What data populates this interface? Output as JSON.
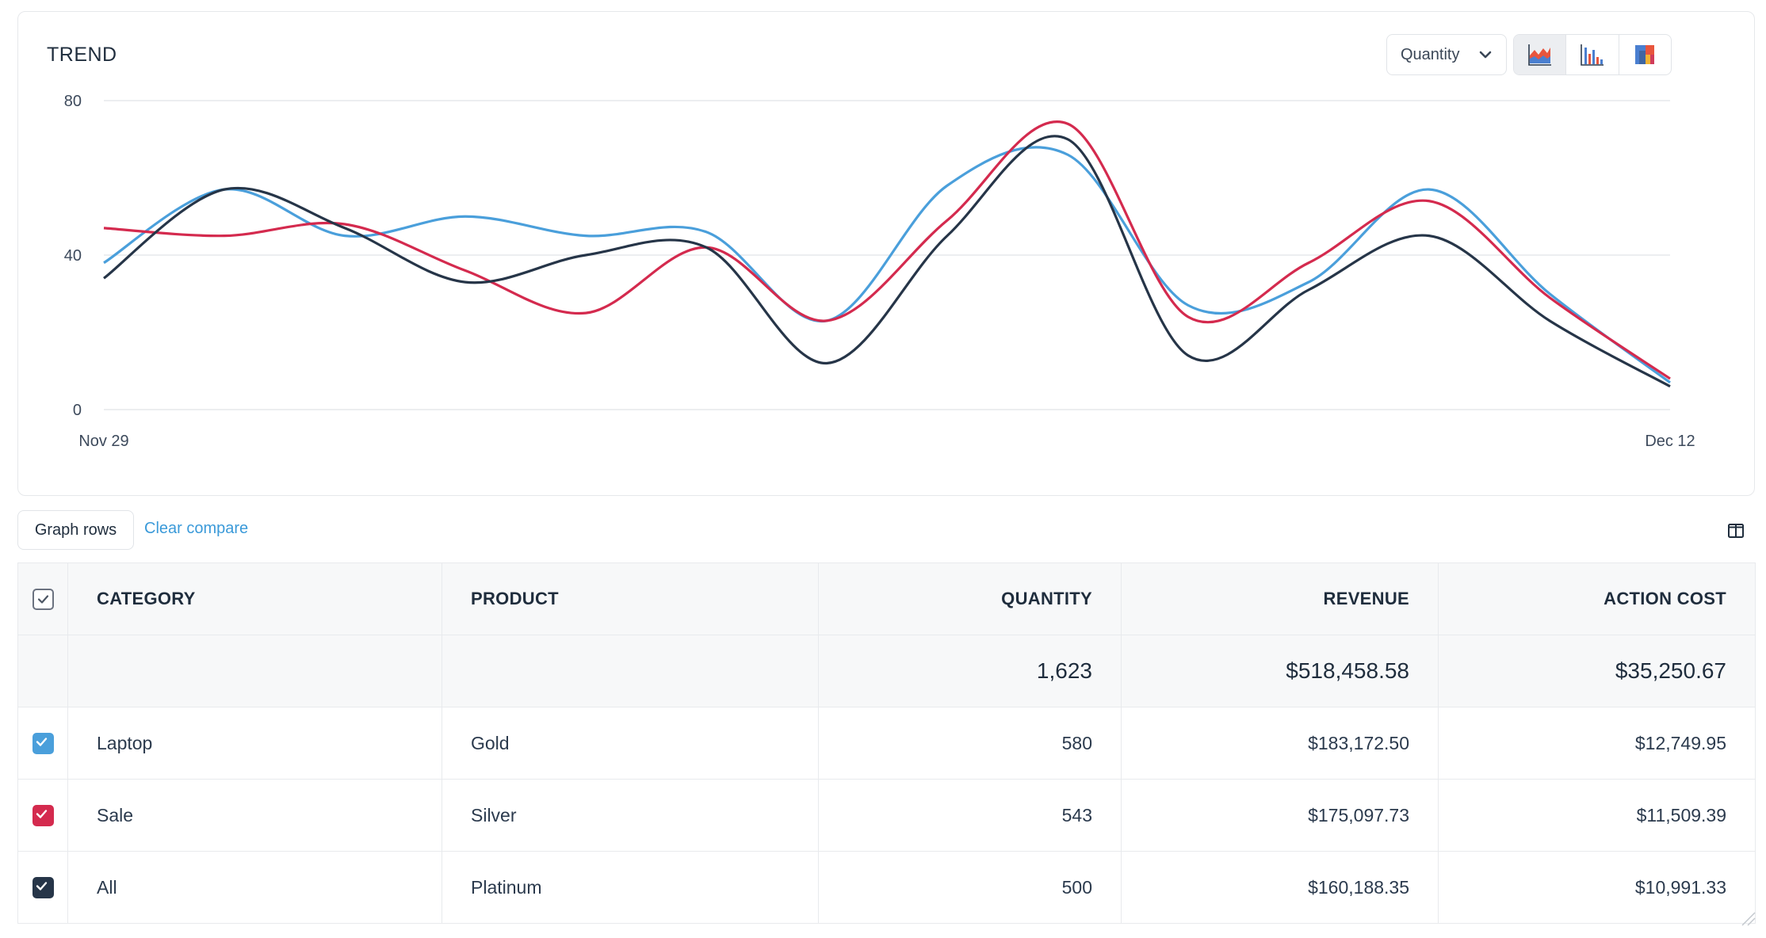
{
  "trend": {
    "title": "TREND",
    "metric_select": {
      "value": "Quantity"
    },
    "view_buttons": [
      {
        "icon": "area-chart-icon",
        "active": true
      },
      {
        "icon": "bar-chart-icon",
        "active": false
      },
      {
        "icon": "treemap-icon",
        "active": false
      }
    ]
  },
  "chart_data": {
    "type": "line",
    "ylim": [
      0,
      80
    ],
    "yticks": [
      "80",
      "40",
      "0"
    ],
    "x_tick_labels": [
      "Nov 29",
      "Dec 12"
    ],
    "grid": true,
    "legend": "none",
    "series": [
      {
        "color": "#4a9fdb",
        "values": [
          38,
          57,
          45,
          50,
          45,
          46,
          23,
          58,
          66,
          27,
          33,
          57,
          30,
          7
        ]
      },
      {
        "color": "#d42a4e",
        "values": [
          47,
          45,
          48,
          36,
          25,
          42,
          23,
          49,
          74,
          24,
          38,
          54,
          29,
          8
        ]
      },
      {
        "color": "#263548",
        "values": [
          34,
          57,
          47,
          33,
          40,
          42,
          12,
          45,
          70,
          14,
          31,
          45,
          23,
          6
        ]
      }
    ]
  },
  "toolbar": {
    "graph_rows_label": "Graph rows",
    "clear_compare_label": "Clear compare"
  },
  "table": {
    "headers": [
      "CATEGORY",
      "PRODUCT",
      "QUANTITY",
      "REVENUE",
      "ACTION COST"
    ],
    "totals": {
      "quantity": "1,623",
      "revenue": "$518,458.58",
      "action_cost": "$35,250.67"
    },
    "rows": [
      {
        "category": "Laptop",
        "product": "Gold",
        "quantity": "580",
        "revenue": "$183,172.50",
        "action_cost": "$12,749.95",
        "checkbox_color": "#4a9fdb"
      },
      {
        "category": "Sale",
        "product": "Silver",
        "quantity": "543",
        "revenue": "$175,097.73",
        "action_cost": "$11,509.39",
        "checkbox_color": "#d42a4e"
      },
      {
        "category": "All",
        "product": "Platinum",
        "quantity": "500",
        "revenue": "$160,188.35",
        "action_cost": "$10,991.33",
        "checkbox_color": "#263548"
      }
    ]
  }
}
